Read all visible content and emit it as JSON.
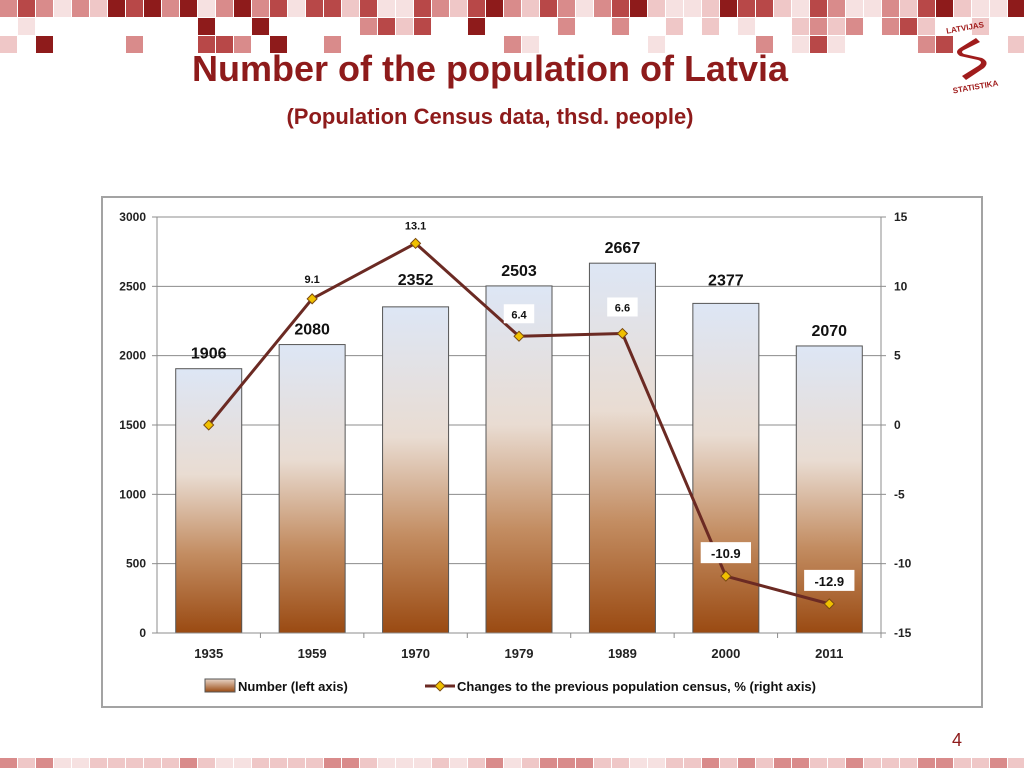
{
  "slide": {
    "title": "Number of the population of Latvia",
    "subtitle": "(Population Census data, thsd. people)",
    "page_number": "4",
    "logo_text": "LATVIJAS STATISTIKA",
    "accent_color": "#8e1b1b"
  },
  "chart_data": {
    "type": "bar",
    "categories": [
      "1935",
      "1959",
      "1970",
      "1979",
      "1989",
      "2000",
      "2011"
    ],
    "series": [
      {
        "name": "Number (left axis)",
        "type": "bar",
        "axis": "left",
        "values": [
          1906,
          2080,
          2352,
          2503,
          2667,
          2377,
          2070
        ],
        "labels": [
          "1906",
          "2080",
          "2352",
          "2503",
          "2667",
          "2377",
          "2070"
        ],
        "color_top": "#dde6f5",
        "color_bottom": "#9a4a12"
      },
      {
        "name": "Changes to the previous population census, % (right axis)",
        "type": "line",
        "axis": "right",
        "values": [
          0,
          9.1,
          13.1,
          6.4,
          6.6,
          -10.9,
          -12.9
        ],
        "labels": [
          "",
          "9.1",
          "13.1",
          "6.4",
          "6.6",
          "-10.9",
          "-12.9"
        ],
        "color": "#6b2a23",
        "marker_color": "#f0c000"
      }
    ],
    "y_left": {
      "ticks": [
        "0",
        "500",
        "1000",
        "1500",
        "2000",
        "2500",
        "3000"
      ],
      "range": [
        0,
        3000
      ]
    },
    "y_right": {
      "ticks": [
        "-15",
        "-10",
        "-5",
        "0",
        "5",
        "10",
        "15"
      ],
      "range": [
        -15,
        15
      ]
    },
    "grid": true,
    "legend_position": "bottom"
  }
}
